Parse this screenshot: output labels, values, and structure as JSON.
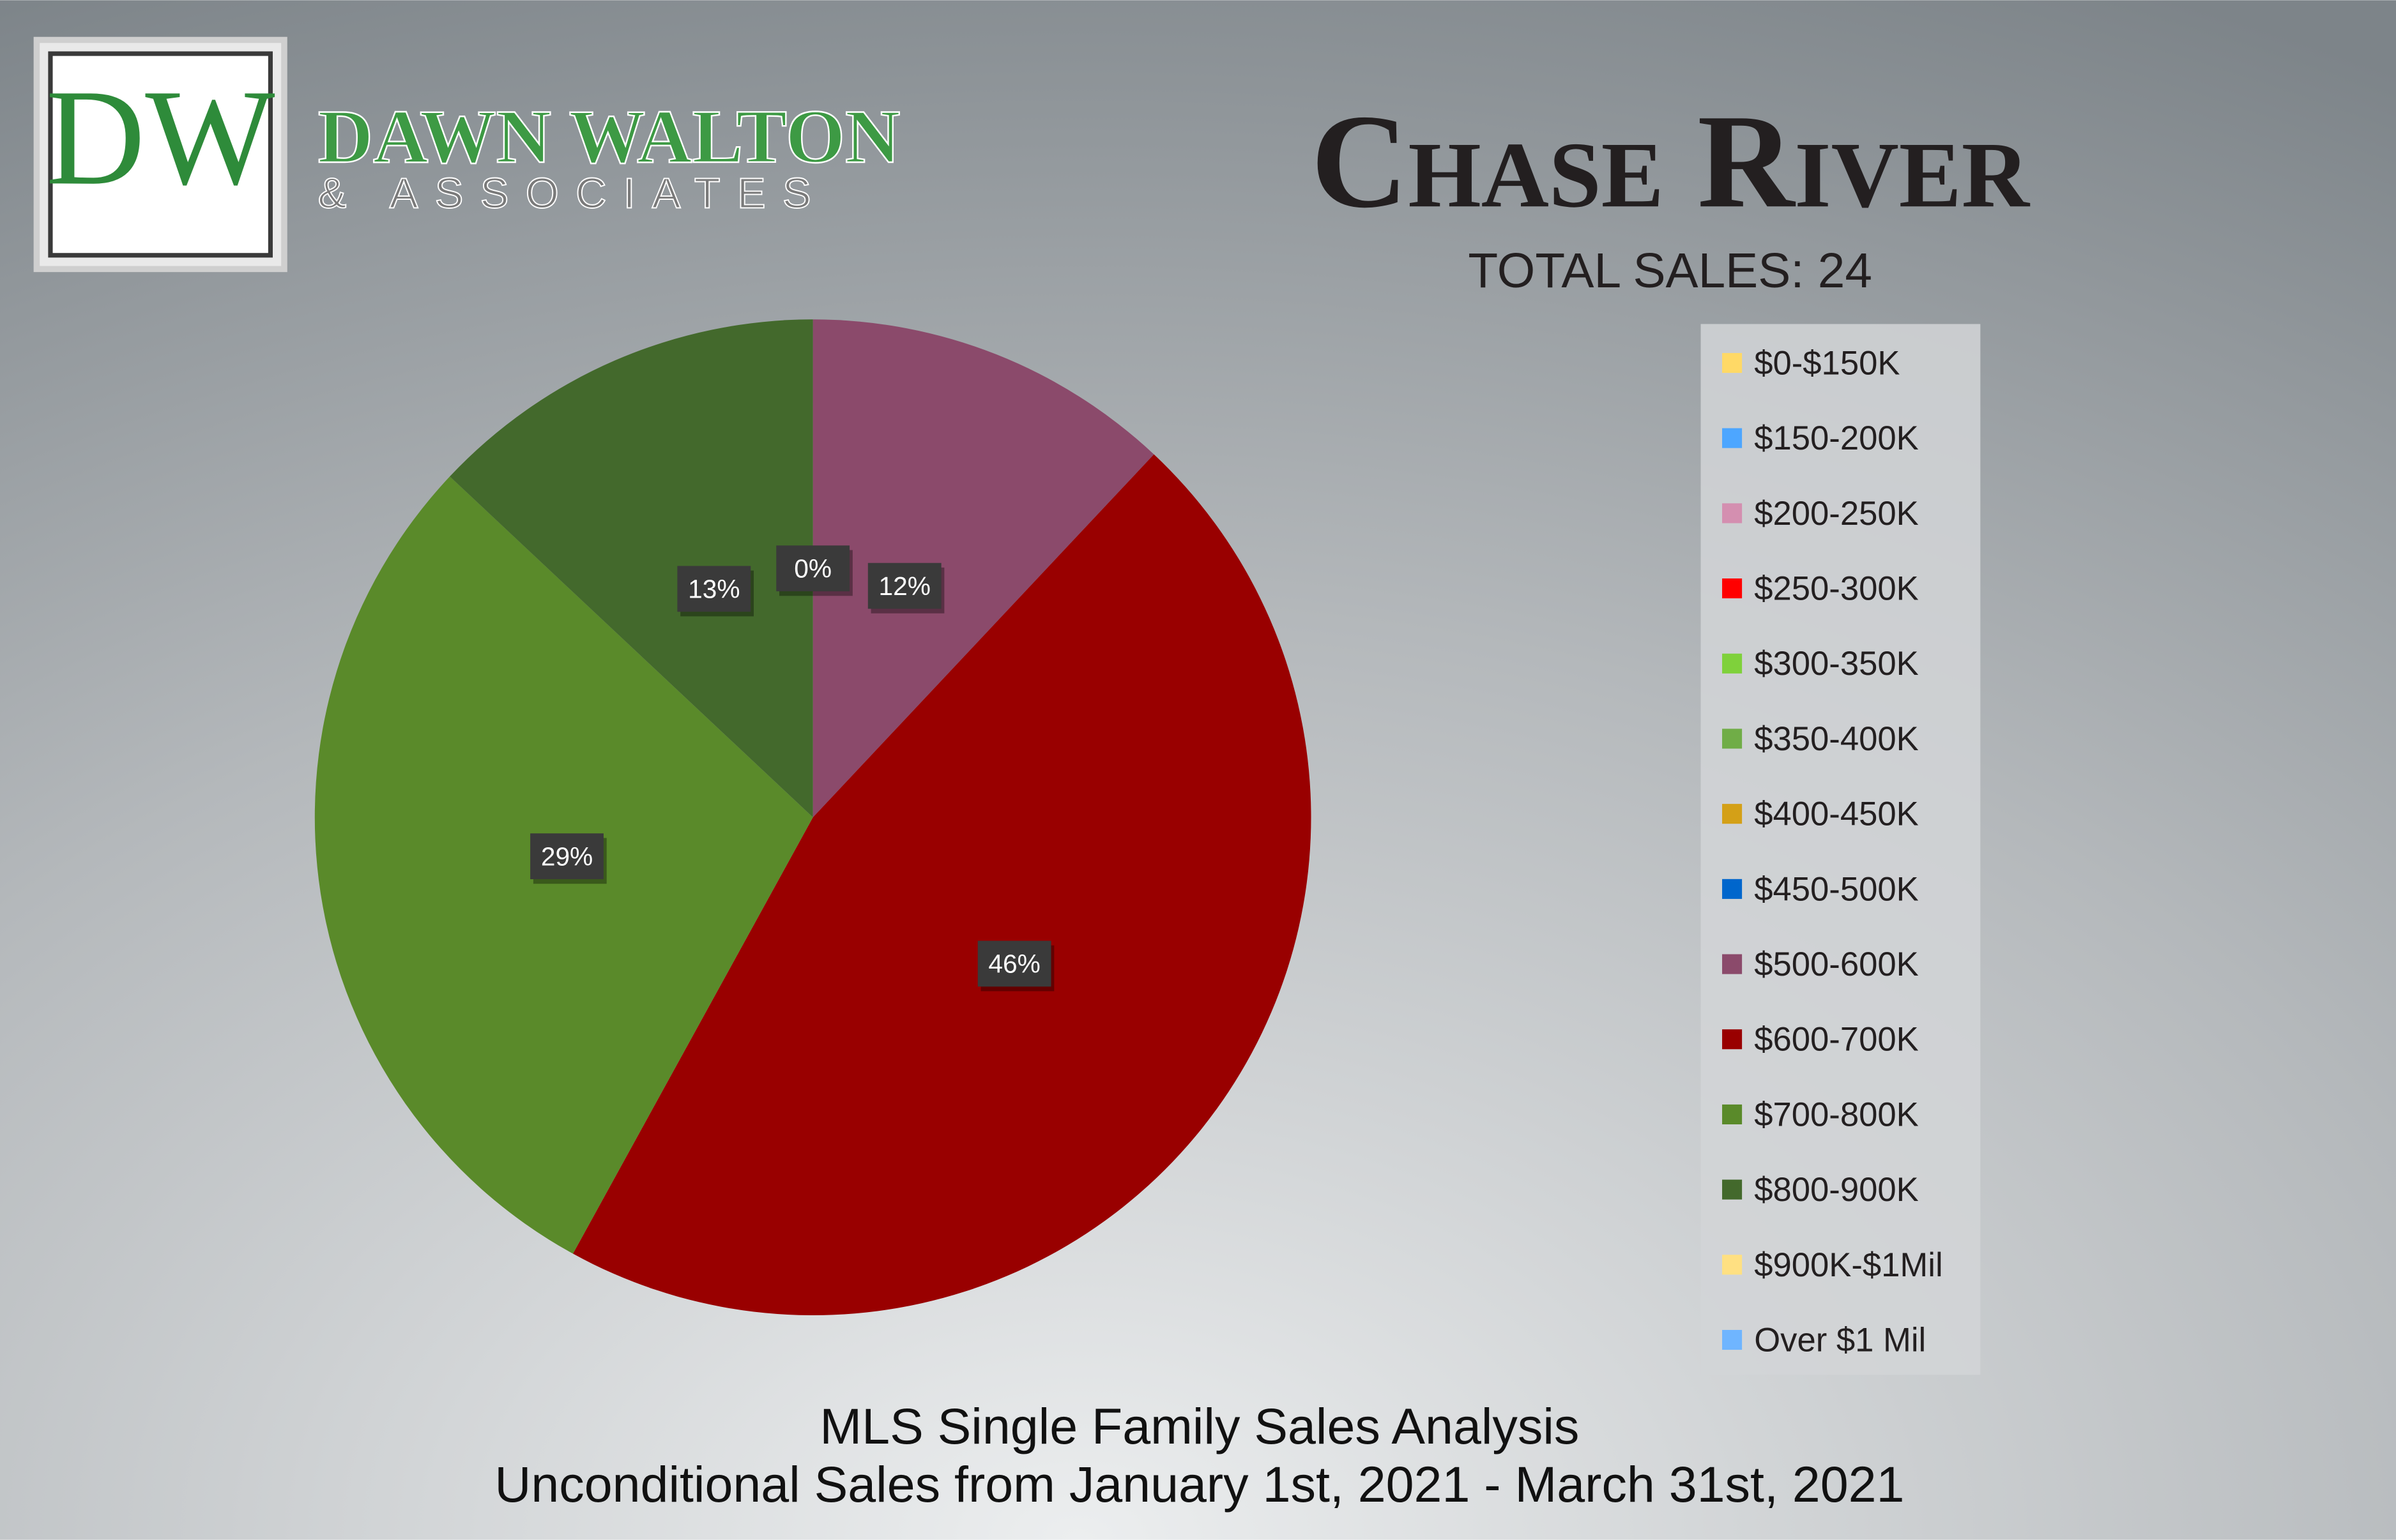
{
  "logo": {
    "initials": "DW",
    "name": "DAWN WALTON",
    "tagline": "& ASSOCIATES"
  },
  "chart_data": {
    "type": "pie",
    "title": "Chase River",
    "subtitle": "TOTAL SALES: 24",
    "footer": [
      "MLS Single Family Sales Analysis",
      "Unconditional Sales from January 1st, 2021 - March 31st, 2021"
    ],
    "categories": [
      "$0-$150K",
      "$150-200K",
      "$200-250K",
      "$250-300K",
      "$300-350K",
      "$350-400K",
      "$400-450K",
      "$450-500K",
      "$500-600K",
      "$600-700K",
      "$700-800K",
      "$800-900K",
      "$900K-$1Mil",
      "Over $1 Mil"
    ],
    "colors": [
      "#ffd966",
      "#4da6ff",
      "#d48fb0",
      "#ff0000",
      "#7fd13b",
      "#70ad47",
      "#d4a017",
      "#0066cc",
      "#8b4a6b",
      "#990000",
      "#5a8a2a",
      "#43692c",
      "#ffe082",
      "#6fb5ff"
    ],
    "values": [
      null,
      null,
      null,
      null,
      null,
      null,
      null,
      0,
      12,
      46,
      29,
      13,
      null,
      null
    ],
    "value_labels": [
      null,
      null,
      null,
      null,
      null,
      null,
      null,
      "0%",
      "12%",
      "46%",
      "29%",
      "13%",
      null,
      null
    ],
    "legend": "right"
  }
}
